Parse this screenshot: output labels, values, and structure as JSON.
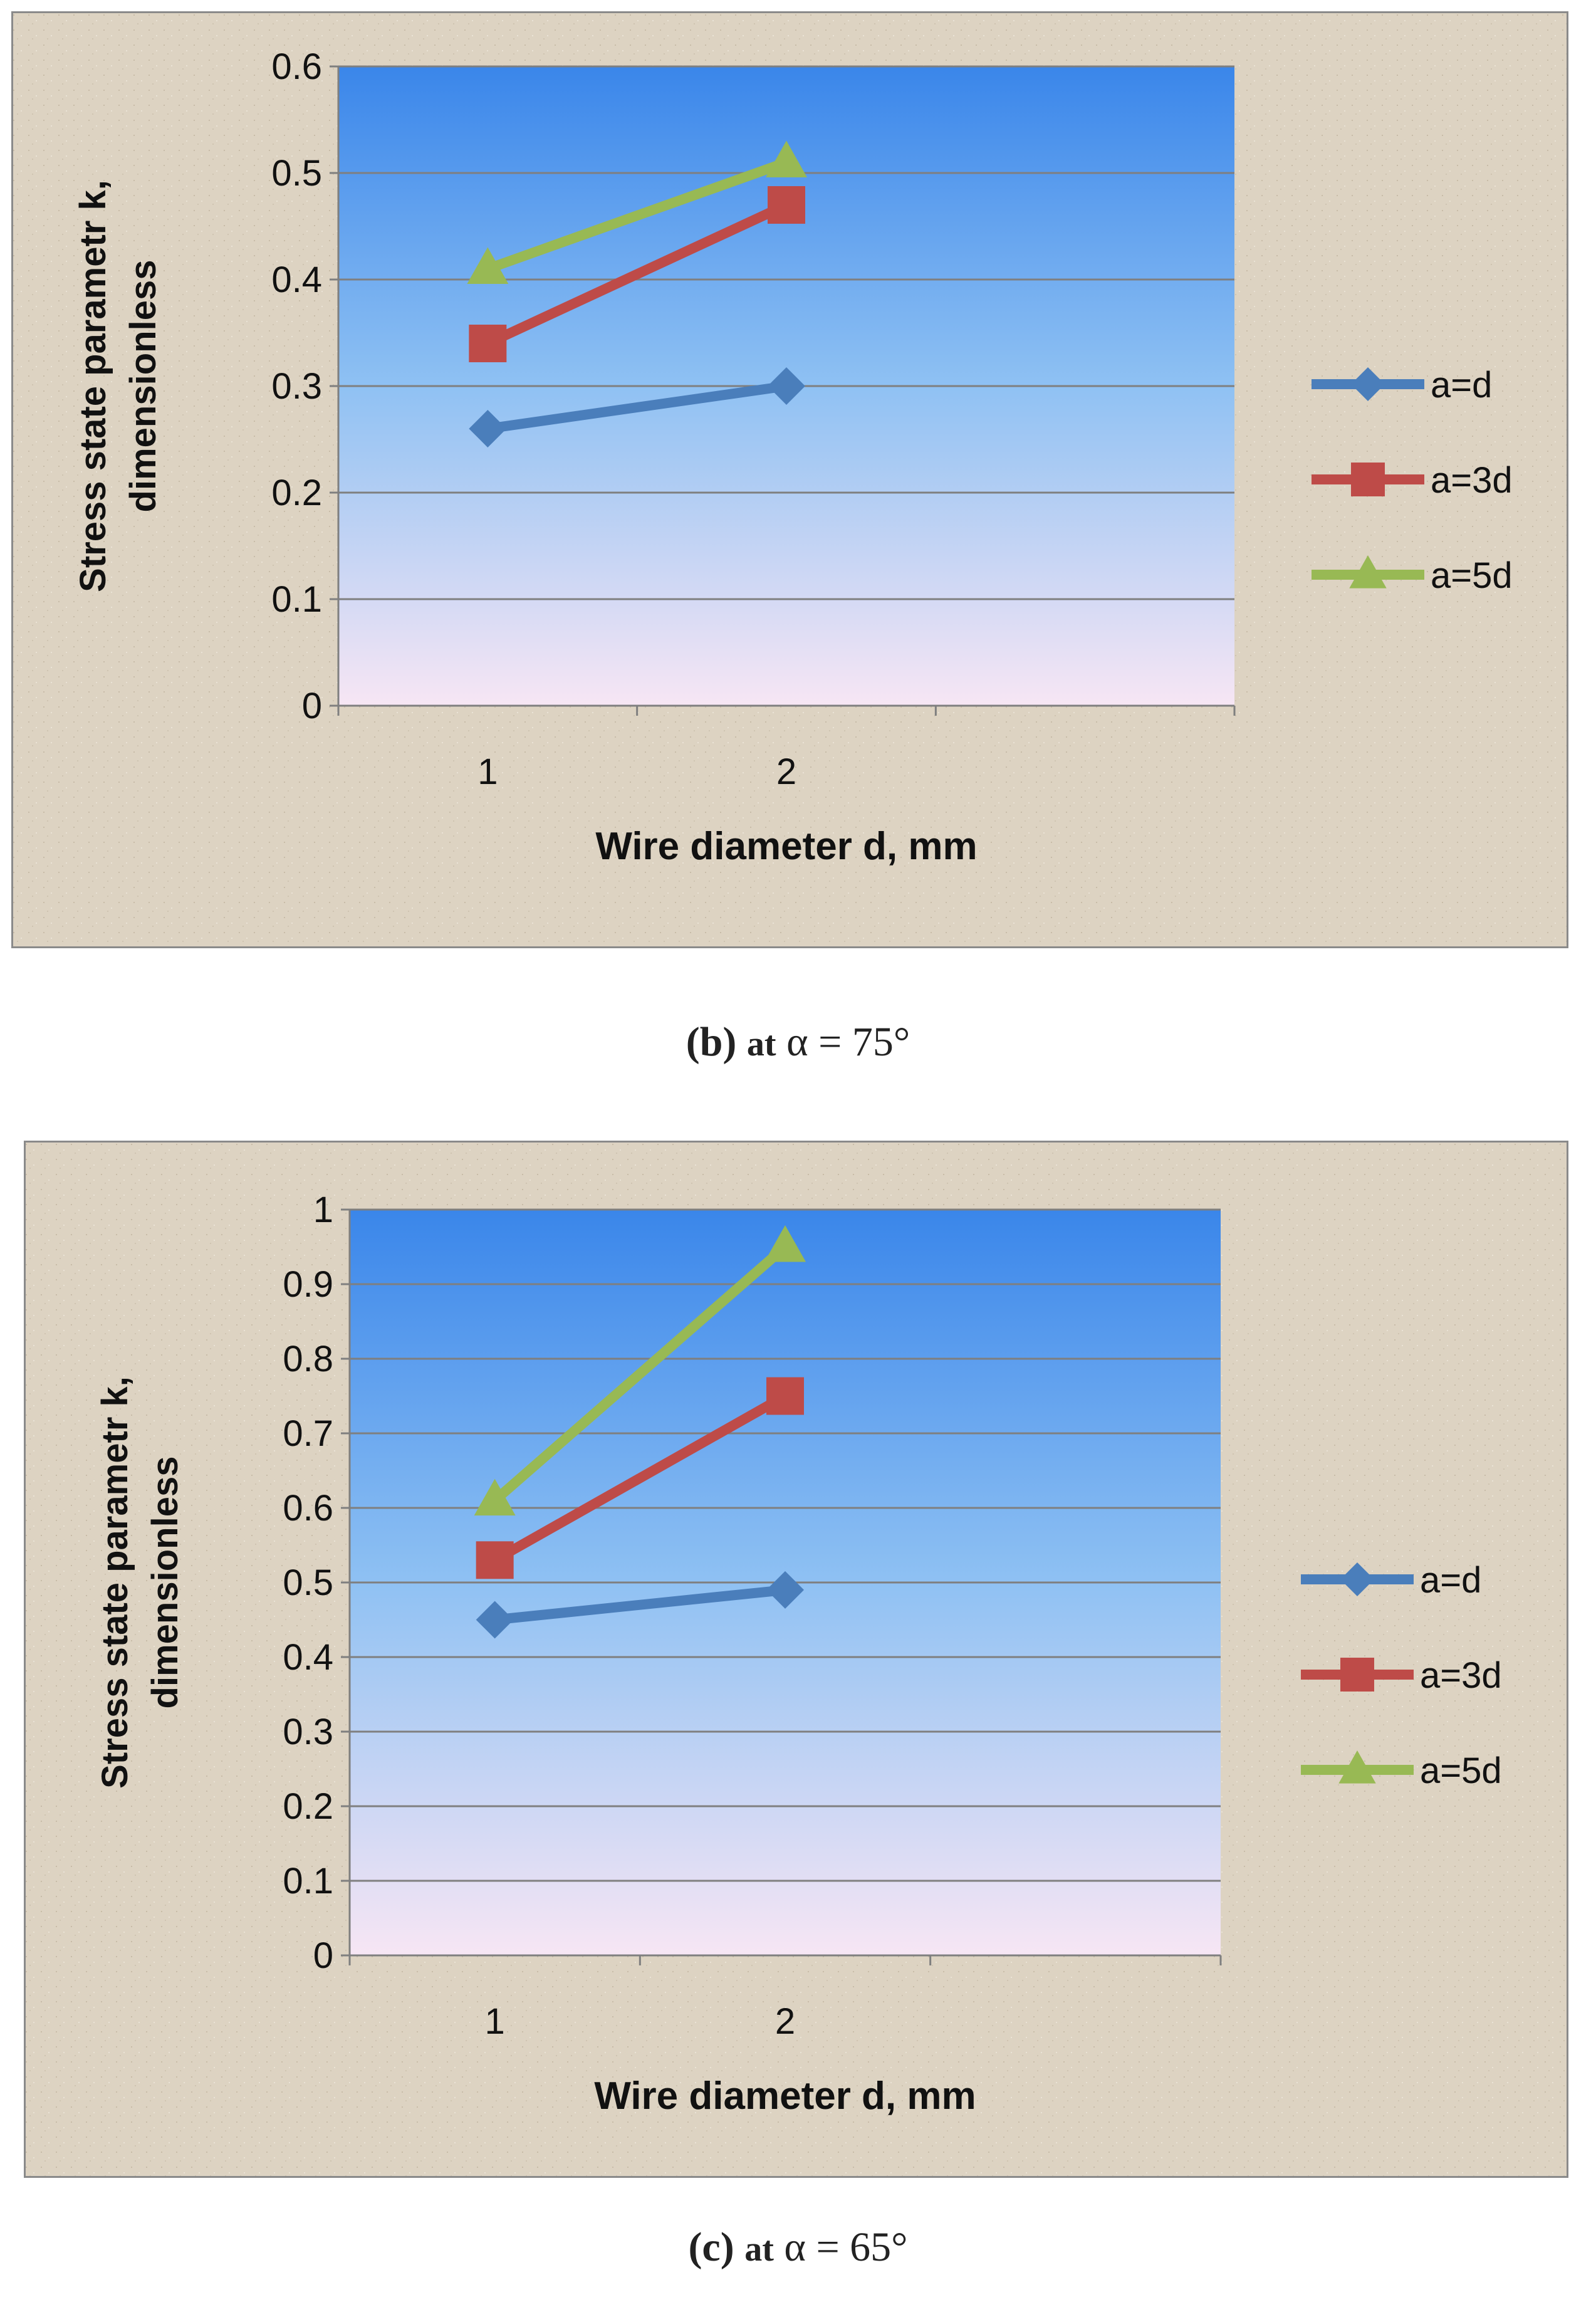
{
  "chart_data": [
    {
      "type": "line",
      "xlabel": "Wire diameter d, mm",
      "ylabel_line1": "Stress state parametr k,",
      "ylabel_line2": "dimensionless",
      "x": [
        "1",
        "2"
      ],
      "ylim": [
        0,
        0.6
      ],
      "yticks": [
        "0",
        "0.1",
        "0.2",
        "0.3",
        "0.4",
        "0.5",
        "0.6"
      ],
      "grid": true,
      "legend_position": "right",
      "series": [
        {
          "name": "a=d",
          "values": [
            0.26,
            0.3
          ],
          "color": "#4a7ebb",
          "marker": "diamond"
        },
        {
          "name": "a=3d",
          "values": [
            0.34,
            0.47
          ],
          "color": "#be4b48",
          "marker": "square"
        },
        {
          "name": "a=5d",
          "values": [
            0.41,
            0.51
          ],
          "color": "#98b954",
          "marker": "triangle"
        }
      ]
    },
    {
      "type": "line",
      "xlabel": "Wire diameter d, mm",
      "ylabel_line1": "Stress state parametr k,",
      "ylabel_line2": "dimensionless",
      "x": [
        "1",
        "2"
      ],
      "ylim": [
        0,
        1
      ],
      "yticks": [
        "0",
        "0.1",
        "0.2",
        "0.3",
        "0.4",
        "0.5",
        "0.6",
        "0.7",
        "0.8",
        "0.9",
        "1"
      ],
      "grid": true,
      "legend_position": "right",
      "series": [
        {
          "name": "a=d",
          "values": [
            0.45,
            0.49
          ],
          "color": "#4a7ebb",
          "marker": "diamond"
        },
        {
          "name": "a=3d",
          "values": [
            0.53,
            0.75
          ],
          "color": "#be4b48",
          "marker": "square"
        },
        {
          "name": "a=5d",
          "values": [
            0.61,
            0.95
          ],
          "color": "#98b954",
          "marker": "triangle"
        }
      ]
    }
  ],
  "captions": [
    {
      "label": "(b)",
      "text": "at",
      "math": "α = 75°"
    },
    {
      "label": "(c)",
      "text": "at",
      "math": "α = 65°"
    }
  ]
}
